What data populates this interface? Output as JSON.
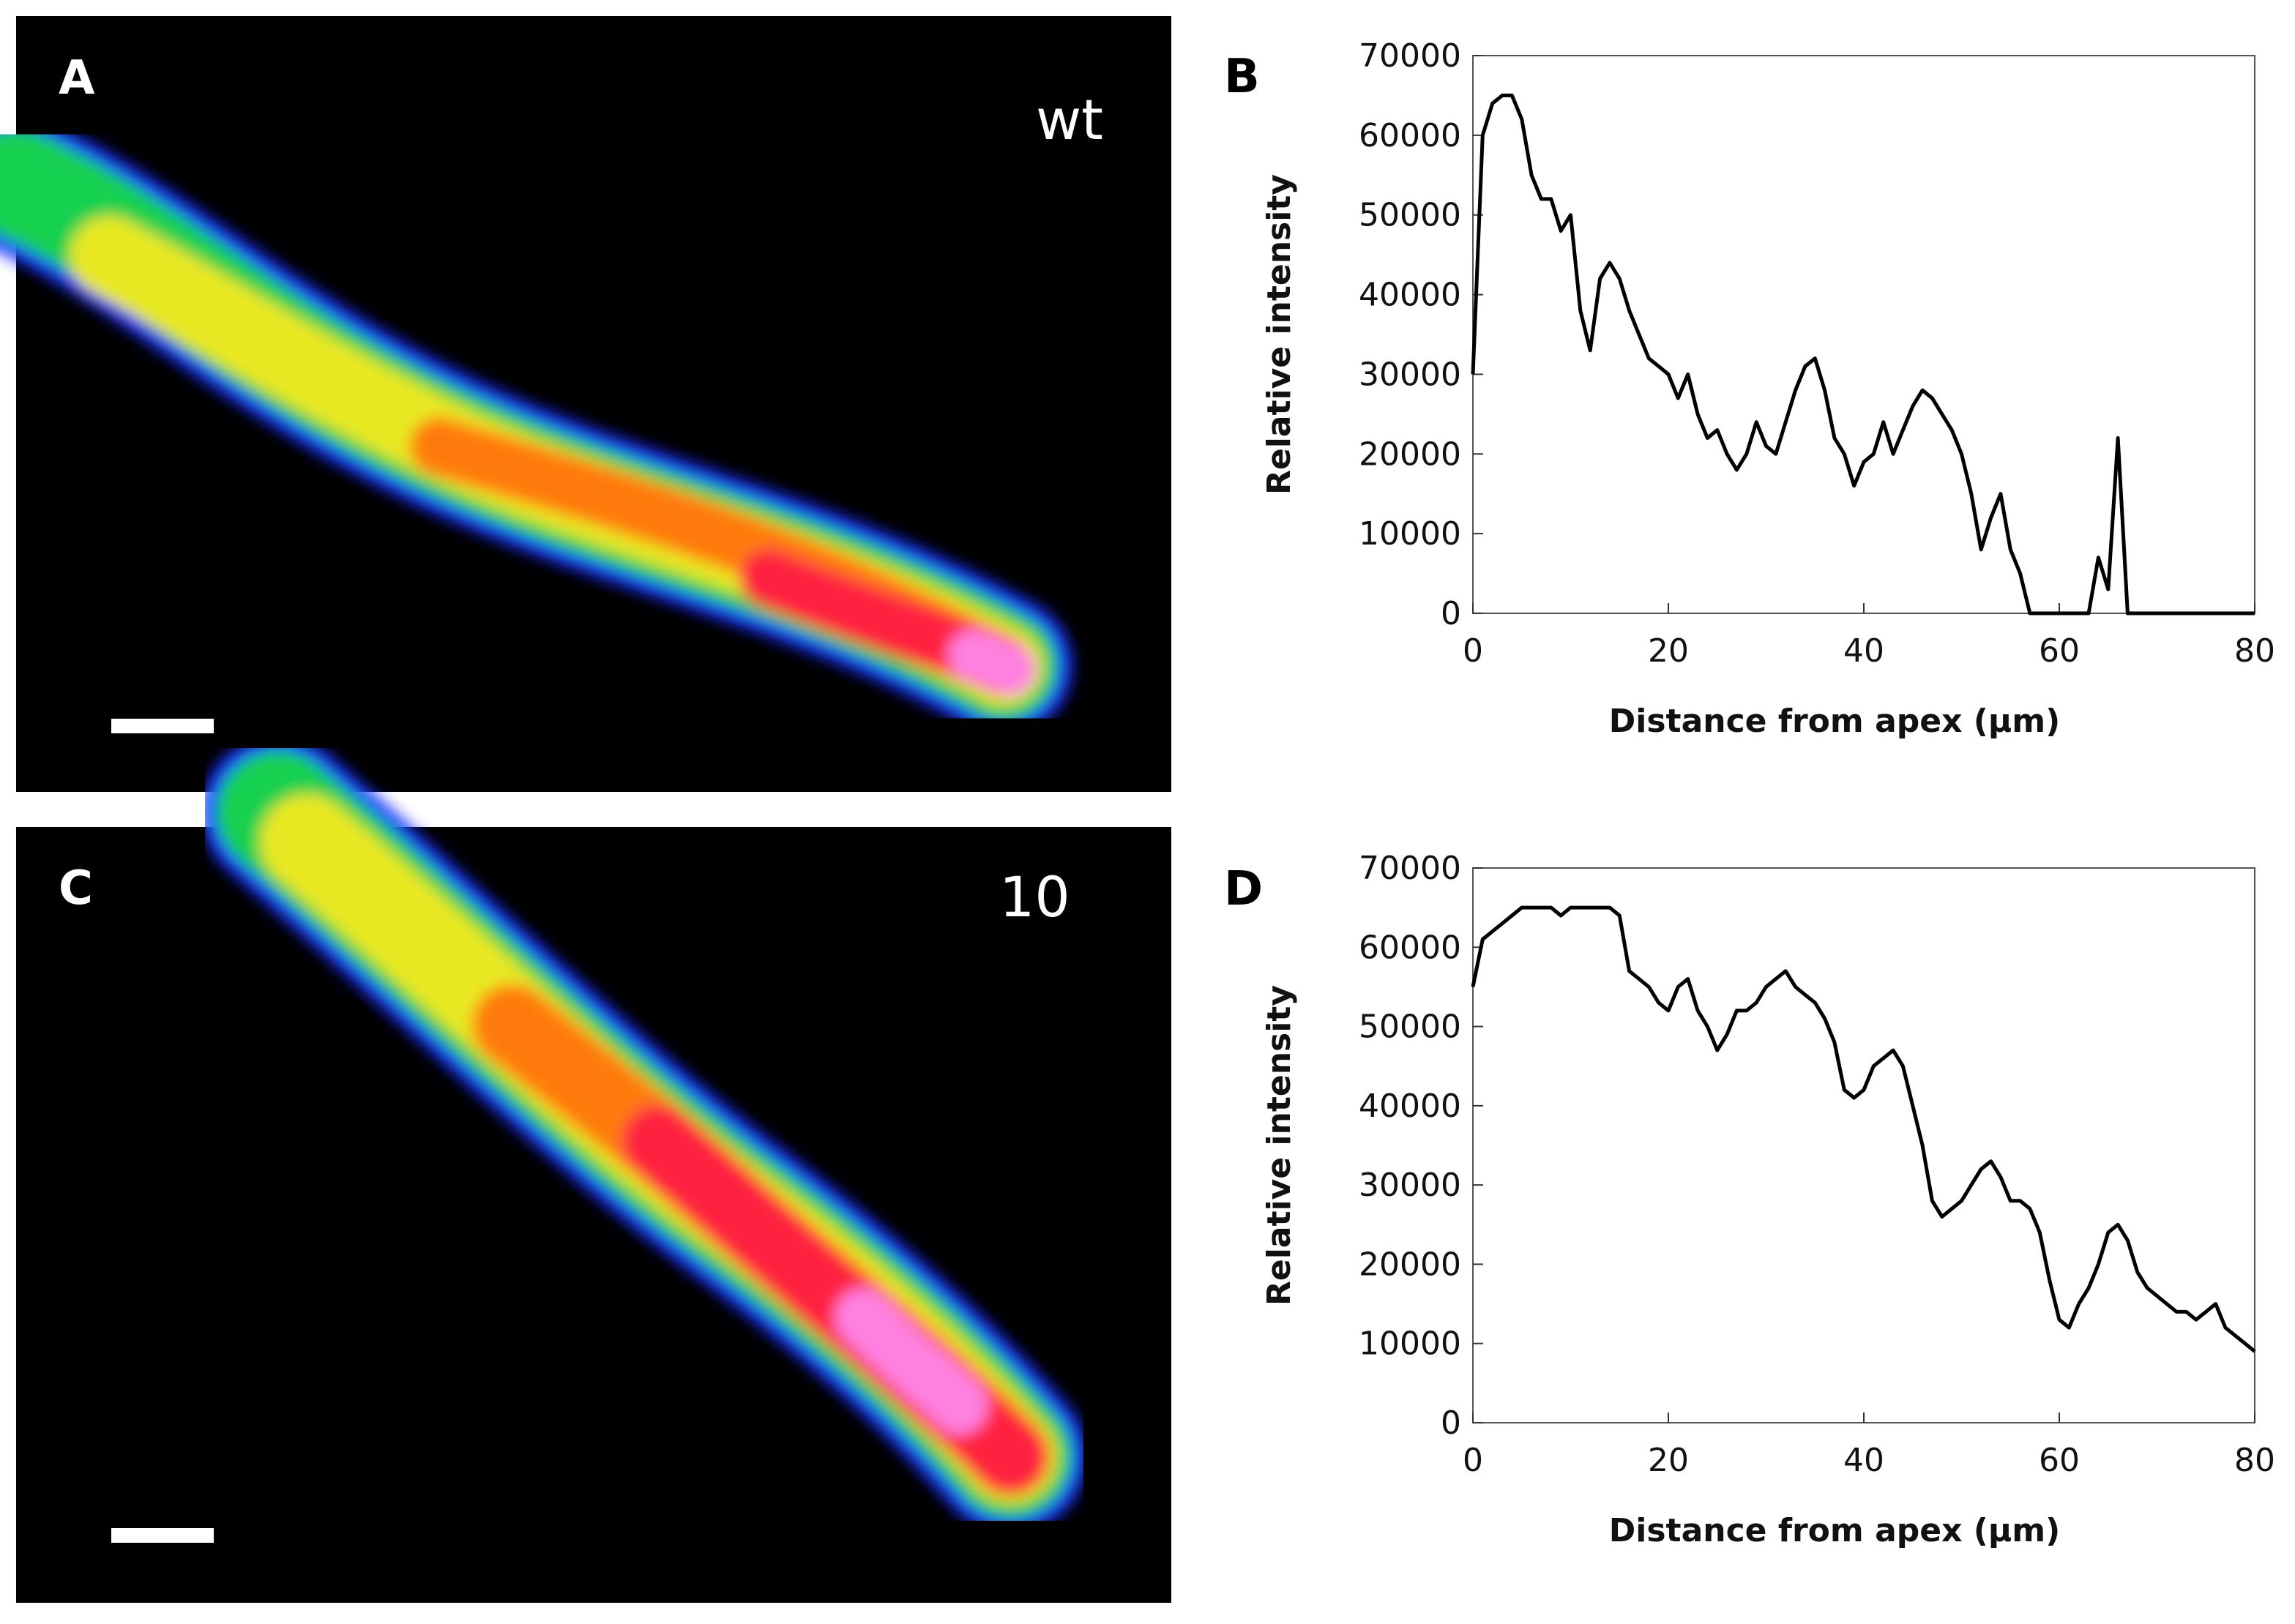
{
  "images": [
    {
      "label": "A",
      "name": "wt"
    },
    {
      "label": "C",
      "name": "10"
    }
  ],
  "chart_data": [
    {
      "type": "line",
      "panel_label": "B",
      "xlabel": "Distance from apex (µm)",
      "ylabel": "Relative intensity",
      "color": "#000000",
      "x": [
        0,
        1,
        2,
        3,
        4,
        5,
        6,
        7,
        8,
        9,
        10,
        11,
        12,
        13,
        14,
        15,
        16,
        17,
        18,
        19,
        20,
        21,
        22,
        23,
        24,
        25,
        26,
        27,
        28,
        29,
        30,
        31,
        32,
        33,
        34,
        35,
        36,
        37,
        38,
        39,
        40,
        41,
        42,
        43,
        44,
        45,
        46,
        47,
        48,
        49,
        50,
        51,
        52,
        53,
        54,
        55,
        56,
        57,
        58,
        59,
        60,
        61,
        62,
        63,
        64,
        65,
        66,
        67,
        68,
        69,
        70,
        71,
        72,
        73,
        74,
        75,
        76,
        77,
        78,
        79,
        80
      ],
      "values": [
        30000,
        60000,
        64000,
        65000,
        65000,
        62000,
        55000,
        52000,
        52000,
        48000,
        50000,
        38000,
        33000,
        42000,
        44000,
        42000,
        38000,
        35000,
        32000,
        31000,
        30000,
        27000,
        30000,
        25000,
        22000,
        23000,
        20000,
        18000,
        20000,
        24000,
        21000,
        20000,
        24000,
        28000,
        31000,
        32000,
        28000,
        22000,
        20000,
        16000,
        19000,
        20000,
        24000,
        20000,
        23000,
        26000,
        28000,
        27000,
        25000,
        23000,
        20000,
        15000,
        8000,
        12000,
        15000,
        8000,
        5000,
        0,
        0,
        0,
        0,
        0,
        0,
        0,
        7000,
        3000,
        22000,
        0,
        0,
        0,
        0,
        0,
        0,
        0,
        0,
        0,
        0,
        0,
        0,
        0,
        0
      ],
      "xlim": [
        0,
        80
      ],
      "xticks": [
        0,
        20,
        40,
        60,
        80
      ],
      "ylim": [
        0,
        70000
      ],
      "yticks": [
        0,
        10000,
        20000,
        30000,
        40000,
        50000,
        60000,
        70000
      ]
    },
    {
      "type": "line",
      "panel_label": "D",
      "xlabel": "Distance from apex (µm)",
      "ylabel": "Relative intensity",
      "color": "#000000",
      "x": [
        0,
        1,
        2,
        3,
        4,
        5,
        6,
        7,
        8,
        9,
        10,
        11,
        12,
        13,
        14,
        15,
        16,
        17,
        18,
        19,
        20,
        21,
        22,
        23,
        24,
        25,
        26,
        27,
        28,
        29,
        30,
        31,
        32,
        33,
        34,
        35,
        36,
        37,
        38,
        39,
        40,
        41,
        42,
        43,
        44,
        45,
        46,
        47,
        48,
        49,
        50,
        51,
        52,
        53,
        54,
        55,
        56,
        57,
        58,
        59,
        60,
        61,
        62,
        63,
        64,
        65,
        66,
        67,
        68,
        69,
        70,
        71,
        72,
        73,
        74,
        75,
        76,
        77,
        78,
        79,
        80
      ],
      "values": [
        55000,
        61000,
        62000,
        63000,
        64000,
        65000,
        65000,
        65000,
        65000,
        64000,
        65000,
        65000,
        65000,
        65000,
        65000,
        64000,
        57000,
        56000,
        55000,
        53000,
        52000,
        55000,
        56000,
        52000,
        50000,
        47000,
        49000,
        52000,
        52000,
        53000,
        55000,
        56000,
        57000,
        55000,
        54000,
        53000,
        51000,
        48000,
        42000,
        41000,
        42000,
        45000,
        46000,
        47000,
        45000,
        40000,
        35000,
        28000,
        26000,
        27000,
        28000,
        30000,
        32000,
        33000,
        31000,
        28000,
        28000,
        27000,
        24000,
        18000,
        13000,
        12000,
        15000,
        17000,
        20000,
        24000,
        25000,
        23000,
        19000,
        17000,
        16000,
        15000,
        14000,
        14000,
        13000,
        14000,
        15000,
        12000,
        11000,
        10000,
        9000
      ],
      "xlim": [
        0,
        80
      ],
      "xticks": [
        0,
        20,
        40,
        60,
        80
      ],
      "ylim": [
        0,
        70000
      ],
      "yticks": [
        0,
        10000,
        20000,
        30000,
        40000,
        50000,
        60000,
        70000
      ]
    }
  ]
}
